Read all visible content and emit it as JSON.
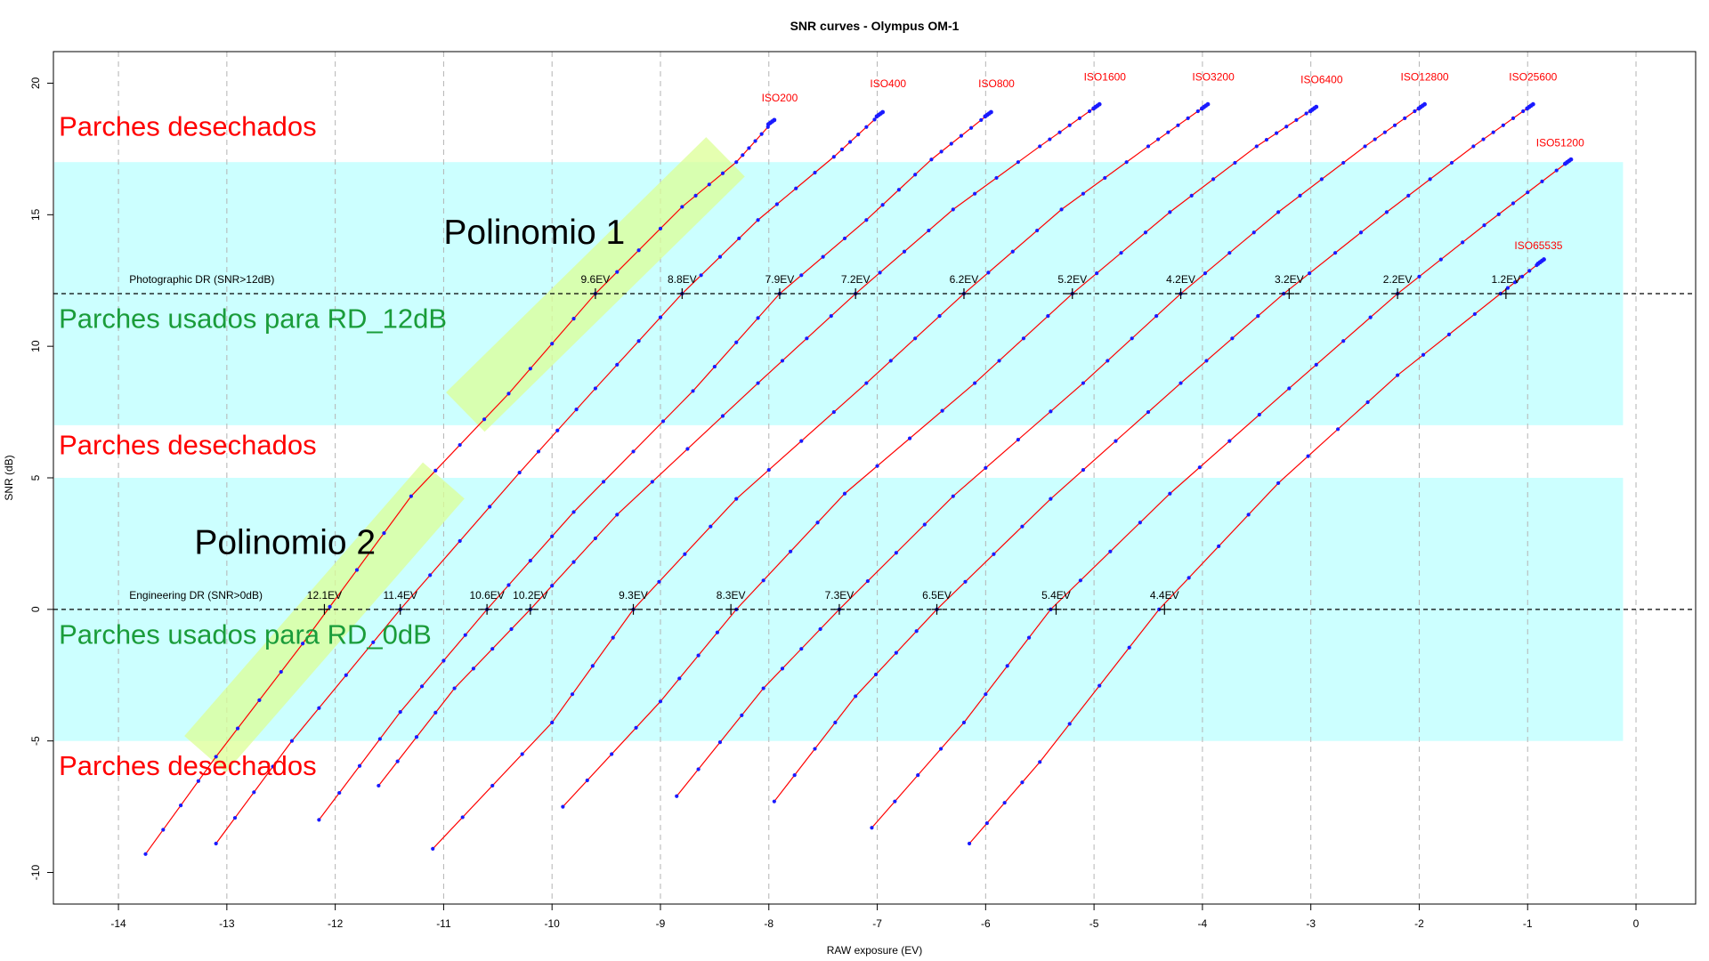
{
  "chart_data": {
    "type": "line",
    "title": "SNR curves - Olympus OM-1",
    "xlabel": "RAW exposure (EV)",
    "ylabel": "SNR (dB)",
    "xlim": [
      -14.6,
      0.55
    ],
    "ylim": [
      -11.2,
      21.2
    ],
    "xticks": [
      -14,
      -13,
      -12,
      -11,
      -10,
      -9,
      -8,
      -7,
      -6,
      -5,
      -4,
      -3,
      -2,
      -1,
      0
    ],
    "yticks": [
      -10,
      -5,
      0,
      5,
      10,
      15,
      20
    ],
    "grid": "vertical dashed",
    "series": [
      {
        "name": "ISO200",
        "label_pos": [
          -7.9,
          19.3
        ],
        "line": [
          [
            -13.75,
            -9.3
          ],
          [
            -13.1,
            -5.6
          ],
          [
            -12.3,
            -1.3
          ],
          [
            -11.3,
            4.3
          ],
          [
            -10.4,
            8.2
          ],
          [
            -9.6,
            12.0
          ],
          [
            -8.8,
            15.3
          ],
          [
            -8.3,
            17.0
          ],
          [
            -7.95,
            18.6
          ]
        ]
      },
      {
        "name": "ISO400",
        "label_pos": [
          -6.9,
          19.85
        ],
        "line": [
          [
            -13.1,
            -8.9
          ],
          [
            -12.4,
            -5.0
          ],
          [
            -11.4,
            0.0
          ],
          [
            -10.3,
            5.2
          ],
          [
            -9.6,
            8.4
          ],
          [
            -8.8,
            12.0
          ],
          [
            -8.1,
            14.8
          ],
          [
            -7.4,
            17.2
          ],
          [
            -6.95,
            18.9
          ]
        ]
      },
      {
        "name": "ISO800",
        "label_pos": [
          -5.9,
          19.85
        ],
        "line": [
          [
            -12.15,
            -8.0
          ],
          [
            -11.4,
            -3.9
          ],
          [
            -10.6,
            0.0
          ],
          [
            -9.8,
            3.7
          ],
          [
            -8.7,
            8.3
          ],
          [
            -7.9,
            12.0
          ],
          [
            -7.1,
            14.8
          ],
          [
            -6.5,
            17.1
          ],
          [
            -5.95,
            18.9
          ]
        ]
      },
      {
        "name": "ISO1600",
        "label_pos": [
          -4.9,
          20.1
        ],
        "line": [
          [
            -11.6,
            -6.7
          ],
          [
            -10.9,
            -3.0
          ],
          [
            -10.2,
            0.0
          ],
          [
            -9.4,
            3.6
          ],
          [
            -8.1,
            8.6
          ],
          [
            -7.2,
            12.0
          ],
          [
            -6.3,
            15.2
          ],
          [
            -5.5,
            17.6
          ],
          [
            -4.95,
            19.2
          ]
        ]
      },
      {
        "name": "ISO3200",
        "label_pos": [
          -3.9,
          20.1
        ],
        "line": [
          [
            -11.1,
            -9.1
          ],
          [
            -10.0,
            -4.3
          ],
          [
            -9.25,
            0.0
          ],
          [
            -8.3,
            4.2
          ],
          [
            -7.1,
            8.6
          ],
          [
            -6.2,
            12.0
          ],
          [
            -5.3,
            15.2
          ],
          [
            -4.5,
            17.6
          ],
          [
            -3.95,
            19.2
          ]
        ]
      },
      {
        "name": "ISO6400",
        "label_pos": [
          -2.9,
          20.0
        ],
        "line": [
          [
            -9.9,
            -7.5
          ],
          [
            -9.0,
            -3.5
          ],
          [
            -8.3,
            0.0
          ],
          [
            -7.3,
            4.4
          ],
          [
            -6.1,
            8.6
          ],
          [
            -5.2,
            12.0
          ],
          [
            -4.3,
            15.1
          ],
          [
            -3.5,
            17.6
          ],
          [
            -2.95,
            19.1
          ]
        ]
      },
      {
        "name": "ISO12800",
        "label_pos": [
          -1.95,
          20.1
        ],
        "line": [
          [
            -8.85,
            -7.1
          ],
          [
            -8.05,
            -3.0
          ],
          [
            -7.35,
            0.0
          ],
          [
            -6.3,
            4.3
          ],
          [
            -5.1,
            8.6
          ],
          [
            -4.2,
            12.0
          ],
          [
            -3.3,
            15.1
          ],
          [
            -2.5,
            17.6
          ],
          [
            -1.95,
            19.2
          ]
        ]
      },
      {
        "name": "ISO25600",
        "label_pos": [
          -0.95,
          20.1
        ],
        "line": [
          [
            -7.95,
            -7.3
          ],
          [
            -7.2,
            -3.3
          ],
          [
            -6.45,
            0.0
          ],
          [
            -5.4,
            4.2
          ],
          [
            -4.2,
            8.6
          ],
          [
            -3.25,
            12.0
          ],
          [
            -2.3,
            15.1
          ],
          [
            -1.5,
            17.6
          ],
          [
            -0.95,
            19.2
          ]
        ]
      },
      {
        "name": "ISO51200",
        "label_pos": [
          -0.7,
          17.6
        ],
        "line": [
          [
            -7.05,
            -8.3
          ],
          [
            -6.2,
            -4.3
          ],
          [
            -5.4,
            0.0
          ],
          [
            -4.3,
            4.4
          ],
          [
            -3.2,
            8.4
          ],
          [
            -2.2,
            12.0
          ],
          [
            -1.4,
            14.6
          ],
          [
            -0.6,
            17.1
          ]
        ]
      },
      {
        "name": "ISO65535",
        "label_pos": [
          -0.9,
          13.7
        ],
        "line": [
          [
            -6.15,
            -8.9
          ],
          [
            -5.5,
            -5.8
          ],
          [
            -4.4,
            0.0
          ],
          [
            -3.3,
            4.8
          ],
          [
            -2.2,
            8.9
          ],
          [
            -1.25,
            12.0
          ],
          [
            -0.85,
            13.3
          ]
        ]
      }
    ],
    "reference_lines": [
      {
        "label": "Photographic DR (SNR>12dB)",
        "y": 12
      },
      {
        "label": "Engineering DR (SNR>0dB)",
        "y": 0
      }
    ],
    "dr_photographic": [
      {
        "label": "9.6EV",
        "x": -9.6
      },
      {
        "label": "8.8EV",
        "x": -8.8
      },
      {
        "label": "7.9EV",
        "x": -7.9
      },
      {
        "label": "7.2EV",
        "x": -7.2
      },
      {
        "label": "6.2EV",
        "x": -6.2
      },
      {
        "label": "5.2EV",
        "x": -5.2
      },
      {
        "label": "4.2EV",
        "x": -4.2
      },
      {
        "label": "3.2EV",
        "x": -3.2
      },
      {
        "label": "2.2EV",
        "x": -2.2
      },
      {
        "label": "1.2EV",
        "x": -1.2
      }
    ],
    "dr_engineering": [
      {
        "label": "12.1EV",
        "x": -12.1
      },
      {
        "label": "11.4EV",
        "x": -11.4
      },
      {
        "label": "10.6EV",
        "x": -10.6
      },
      {
        "label": "10.2EV",
        "x": -10.2
      },
      {
        "label": "9.3EV",
        "x": -9.25
      },
      {
        "label": "8.3EV",
        "x": -8.35
      },
      {
        "label": "7.3EV",
        "x": -7.35
      },
      {
        "label": "6.5EV",
        "x": -6.45
      },
      {
        "label": "5.4EV",
        "x": -5.35
      },
      {
        "label": "4.4EV",
        "x": -4.35
      }
    ],
    "bands": [
      {
        "name": "band-rd12",
        "y": [
          7,
          17
        ],
        "color": "#ccffff"
      },
      {
        "name": "band-rd0",
        "y": [
          -5,
          5
        ],
        "color": "#ccffff"
      }
    ],
    "annotations": [
      {
        "name": "annotation-discarded-top",
        "text": "Parches desechados",
        "color": "red",
        "x": -14.55,
        "y": 18.0
      },
      {
        "name": "annotation-used-rd12",
        "text": "Parches usados para RD_12dB",
        "color": "green",
        "x": -14.55,
        "y": 10.7
      },
      {
        "name": "annotation-discarded-mid",
        "text": "Parches desechados",
        "color": "red",
        "x": -14.55,
        "y": 5.9
      },
      {
        "name": "annotation-used-rd0",
        "text": "Parches usados para RD_0dB",
        "color": "green",
        "x": -14.55,
        "y": -1.3
      },
      {
        "name": "annotation-discarded-bottom",
        "text": "Parches desechados",
        "color": "red",
        "x": -14.55,
        "y": -6.3
      },
      {
        "name": "annotation-polinomio-1",
        "text": "Polinomio 1",
        "color": "black",
        "x": -11.0,
        "y": 13.9
      },
      {
        "name": "annotation-polinomio-2",
        "text": "Polinomio 2",
        "color": "black",
        "x": -13.3,
        "y": 2.1
      }
    ],
    "highlights": [
      {
        "name": "highlight-polinomio-1",
        "from": [
          -10.8,
          7.5
        ],
        "to": [
          -8.4,
          17.2
        ],
        "color": "#dcff96"
      },
      {
        "name": "highlight-polinomio-2",
        "from": [
          -13.2,
          -5.5
        ],
        "to": [
          -11.0,
          4.9
        ],
        "color": "#dcff96"
      }
    ]
  },
  "colors": {
    "band": "#ccffff",
    "highlight_yellow": "#ffff99",
    "curve": "#ff0000",
    "points": "#1a1aff",
    "label_red": "#ff0000",
    "label_green": "#1a9c3a"
  }
}
